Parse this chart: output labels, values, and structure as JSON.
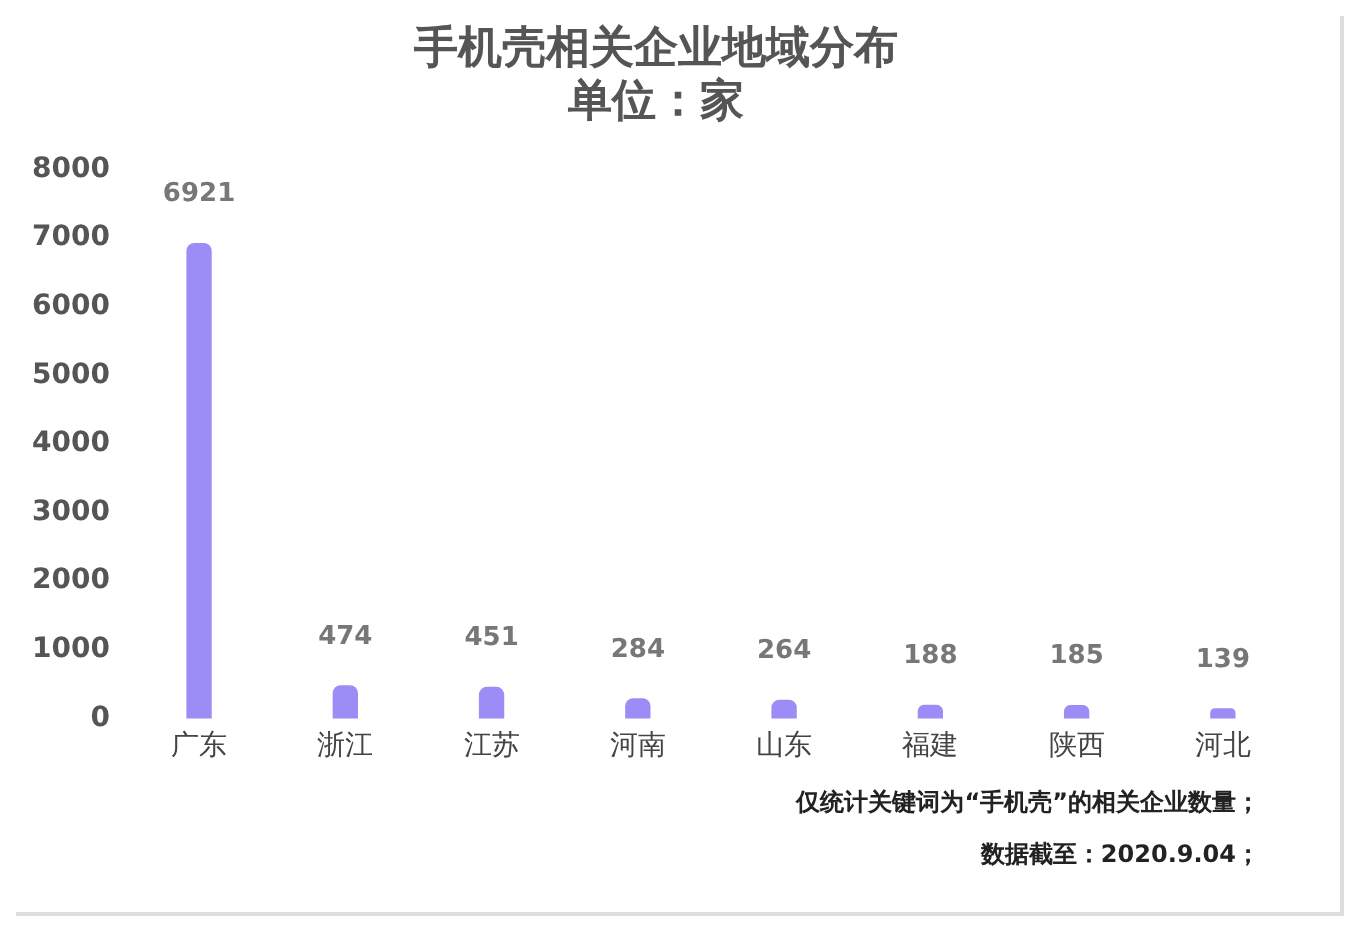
{
  "chart_data": {
    "type": "bar",
    "title": "手机壳相关企业地域分布",
    "subtitle": "单位：家",
    "categories": [
      "广东",
      "浙江",
      "江苏",
      "河南",
      "山东",
      "福建",
      "陕西",
      "河北"
    ],
    "values": [
      6921,
      474,
      451,
      284,
      264,
      188,
      185,
      139
    ],
    "color": "#9b8cf6",
    "ylim": [
      0,
      8000
    ],
    "yticks": [
      0,
      1000,
      2000,
      3000,
      4000,
      5000,
      6000,
      7000,
      8000
    ],
    "grid": false,
    "legend": false,
    "data_labels": true,
    "annotations": [
      "仅统计关键词为“手机壳”的相关企业数量；",
      "数据截至：2020.9.04；"
    ]
  }
}
